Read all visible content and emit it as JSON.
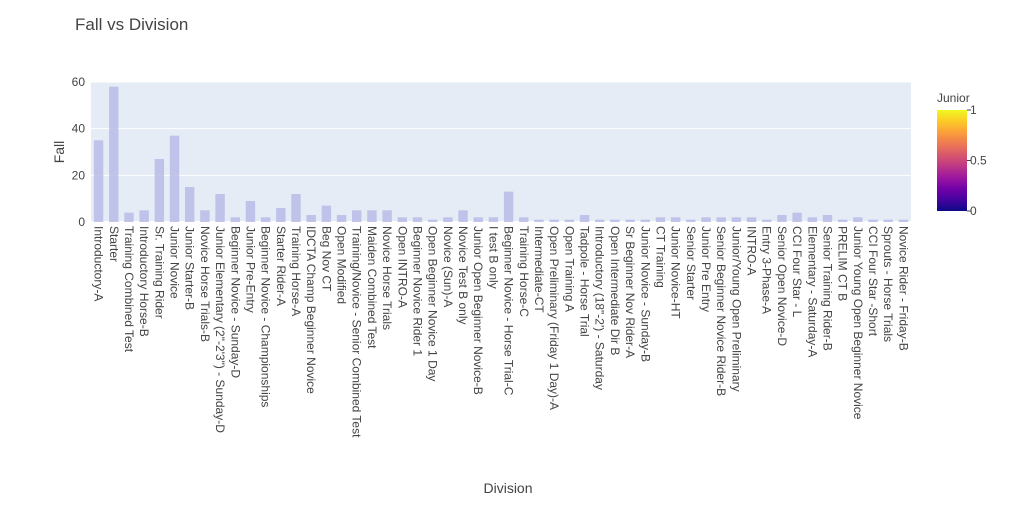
{
  "chart_data": {
    "type": "bar",
    "title": "Fall vs Division",
    "xlabel": "Division",
    "ylabel": "Fall",
    "ylim": [
      0,
      60
    ],
    "yticks": [
      0,
      20,
      40,
      60
    ],
    "grid": true,
    "colorbar": {
      "title": "Junior",
      "range": [
        0,
        1
      ],
      "ticks": [
        "0",
        "0.5",
        "1"
      ],
      "colors": [
        "#0d0887",
        "#46039f",
        "#7201a8",
        "#9c179e",
        "#bd3786",
        "#d8576b",
        "#ed7953",
        "#fb9f3a",
        "#fdca26",
        "#f0f921"
      ]
    },
    "bar_color": "#b8bce6",
    "categories": [
      "Introductory-A",
      "Starter",
      "Training Combined Test",
      "Introductory Horse-B",
      "Sr. Training Rider",
      "Junior Novice",
      "Junior Starter-B",
      "Novice Horse Trials-B",
      "Junior Elementary (2\"-2'3\") - Sunday-D",
      "Beginner Novice - Sunday-D",
      "Junior Pre-Entry",
      "Beginner Novice - Championships",
      "Starter Rider-A",
      "Training Horse-A",
      "IDCTA Champ Beginner Novice",
      "Beg Nov CT",
      "Open Modified",
      "Training/Novice - Senior Combined Test",
      "Maiden Combined Test",
      "Novice Horse Trials",
      "Open INTRO-A",
      "Beginner Novice Rider 1",
      "Open Beginner Novice 1 Day",
      "Novice (Sun)-A",
      "Novice Test B only",
      "Junior Open Beginner Novice-B",
      "I test B only",
      "Beginner Novice - Horse Trial-C",
      "Training Horse-C",
      "Intermediate-CT",
      "Open Preliminary (Friday 1 Day)-A",
      "Open Training A",
      "Tadpole - Horse Trial",
      "Introductory (18\"-2') - Saturday",
      "Open Intermediate Dir B",
      "Sr Beginner Nov Rider-A",
      "Junior Novice - Sunday-B",
      "CT Training",
      "Junior Novice-HT",
      "Senior Starter",
      "Junior Pre Entry",
      "Senior Beginner Novice Rider-B",
      "Junior/Young Open Preliminary",
      "INTRO-A",
      "Entry 3-Phase-A",
      "Senior Open Novice-D",
      "CCI Four Star - L",
      "Elementary - Saturday-A",
      "Senior Training Rider-B",
      "PRELIM CT B",
      "Junior Young Open Beginner Novice",
      "CCI Four Star -Short",
      "Sprouts - Horse Trials",
      "Novice Rider - Friday-B"
    ],
    "values": [
      35,
      58,
      4,
      5,
      27,
      37,
      15,
      5,
      12,
      2,
      9,
      2,
      6,
      12,
      3,
      7,
      3,
      5,
      5,
      5,
      2,
      2,
      1,
      2,
      5,
      2,
      2,
      13,
      2,
      1,
      1,
      1,
      3,
      1,
      1,
      1,
      1,
      2,
      2,
      1,
      2,
      2,
      2,
      2,
      1,
      3,
      4,
      2,
      3,
      1,
      2,
      1,
      1,
      1
    ]
  }
}
